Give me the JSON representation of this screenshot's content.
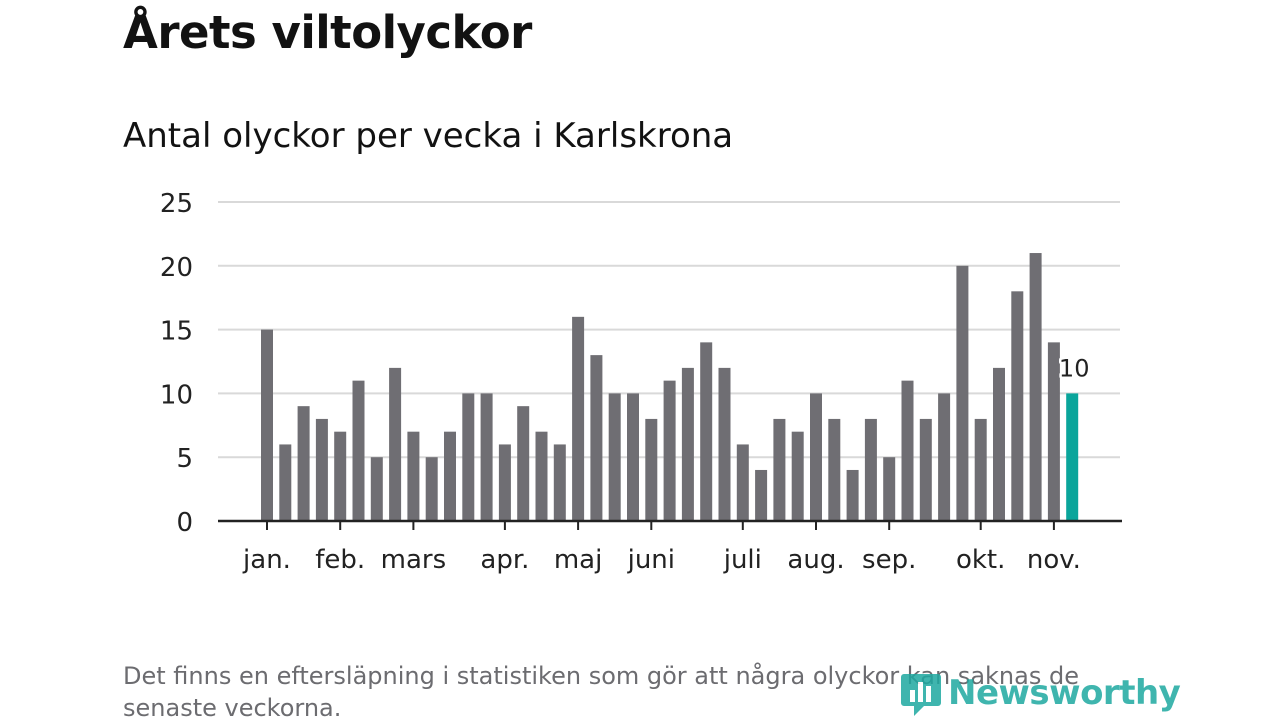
{
  "header": {
    "title": "Årets viltolyckor",
    "subtitle": "Antal olyckor per vecka i Karlskrona"
  },
  "footer": {
    "note": "Det finns en eftersläpning i statistiken som gör att några olyckor kan saknas de senaste veckorna.",
    "brand": "Newsworthy"
  },
  "colors": {
    "bar": "#6f6e73",
    "highlight": "#0aa59b",
    "grid": "#d9d9d9",
    "axis": "#222222",
    "text": "#222222",
    "brand": "#1ea9a1"
  },
  "chart_data": {
    "type": "bar",
    "title": "Antal olyckor per vecka i Karlskrona",
    "xlabel": "",
    "ylabel": "",
    "ylim": [
      0,
      25
    ],
    "yticks": [
      0,
      5,
      10,
      15,
      20,
      25
    ],
    "grid": true,
    "values": [
      15,
      6,
      9,
      8,
      7,
      11,
      5,
      12,
      7,
      5,
      7,
      10,
      10,
      6,
      9,
      7,
      6,
      16,
      13,
      10,
      10,
      8,
      11,
      12,
      14,
      12,
      6,
      4,
      8,
      7,
      10,
      8,
      4,
      8,
      5,
      11,
      8,
      10,
      20,
      8,
      12,
      18,
      21,
      14,
      10
    ],
    "highlight_index": 44,
    "highlight_label": "10",
    "month_labels": [
      {
        "label": "jan.",
        "week": 0
      },
      {
        "label": "feb.",
        "week": 4
      },
      {
        "label": "mars",
        "week": 8
      },
      {
        "label": "apr.",
        "week": 13
      },
      {
        "label": "maj",
        "week": 17
      },
      {
        "label": "juni",
        "week": 21
      },
      {
        "label": "juli",
        "week": 26
      },
      {
        "label": "aug.",
        "week": 30
      },
      {
        "label": "sep.",
        "week": 34
      },
      {
        "label": "okt.",
        "week": 39
      },
      {
        "label": "nov.",
        "week": 43
      }
    ]
  }
}
